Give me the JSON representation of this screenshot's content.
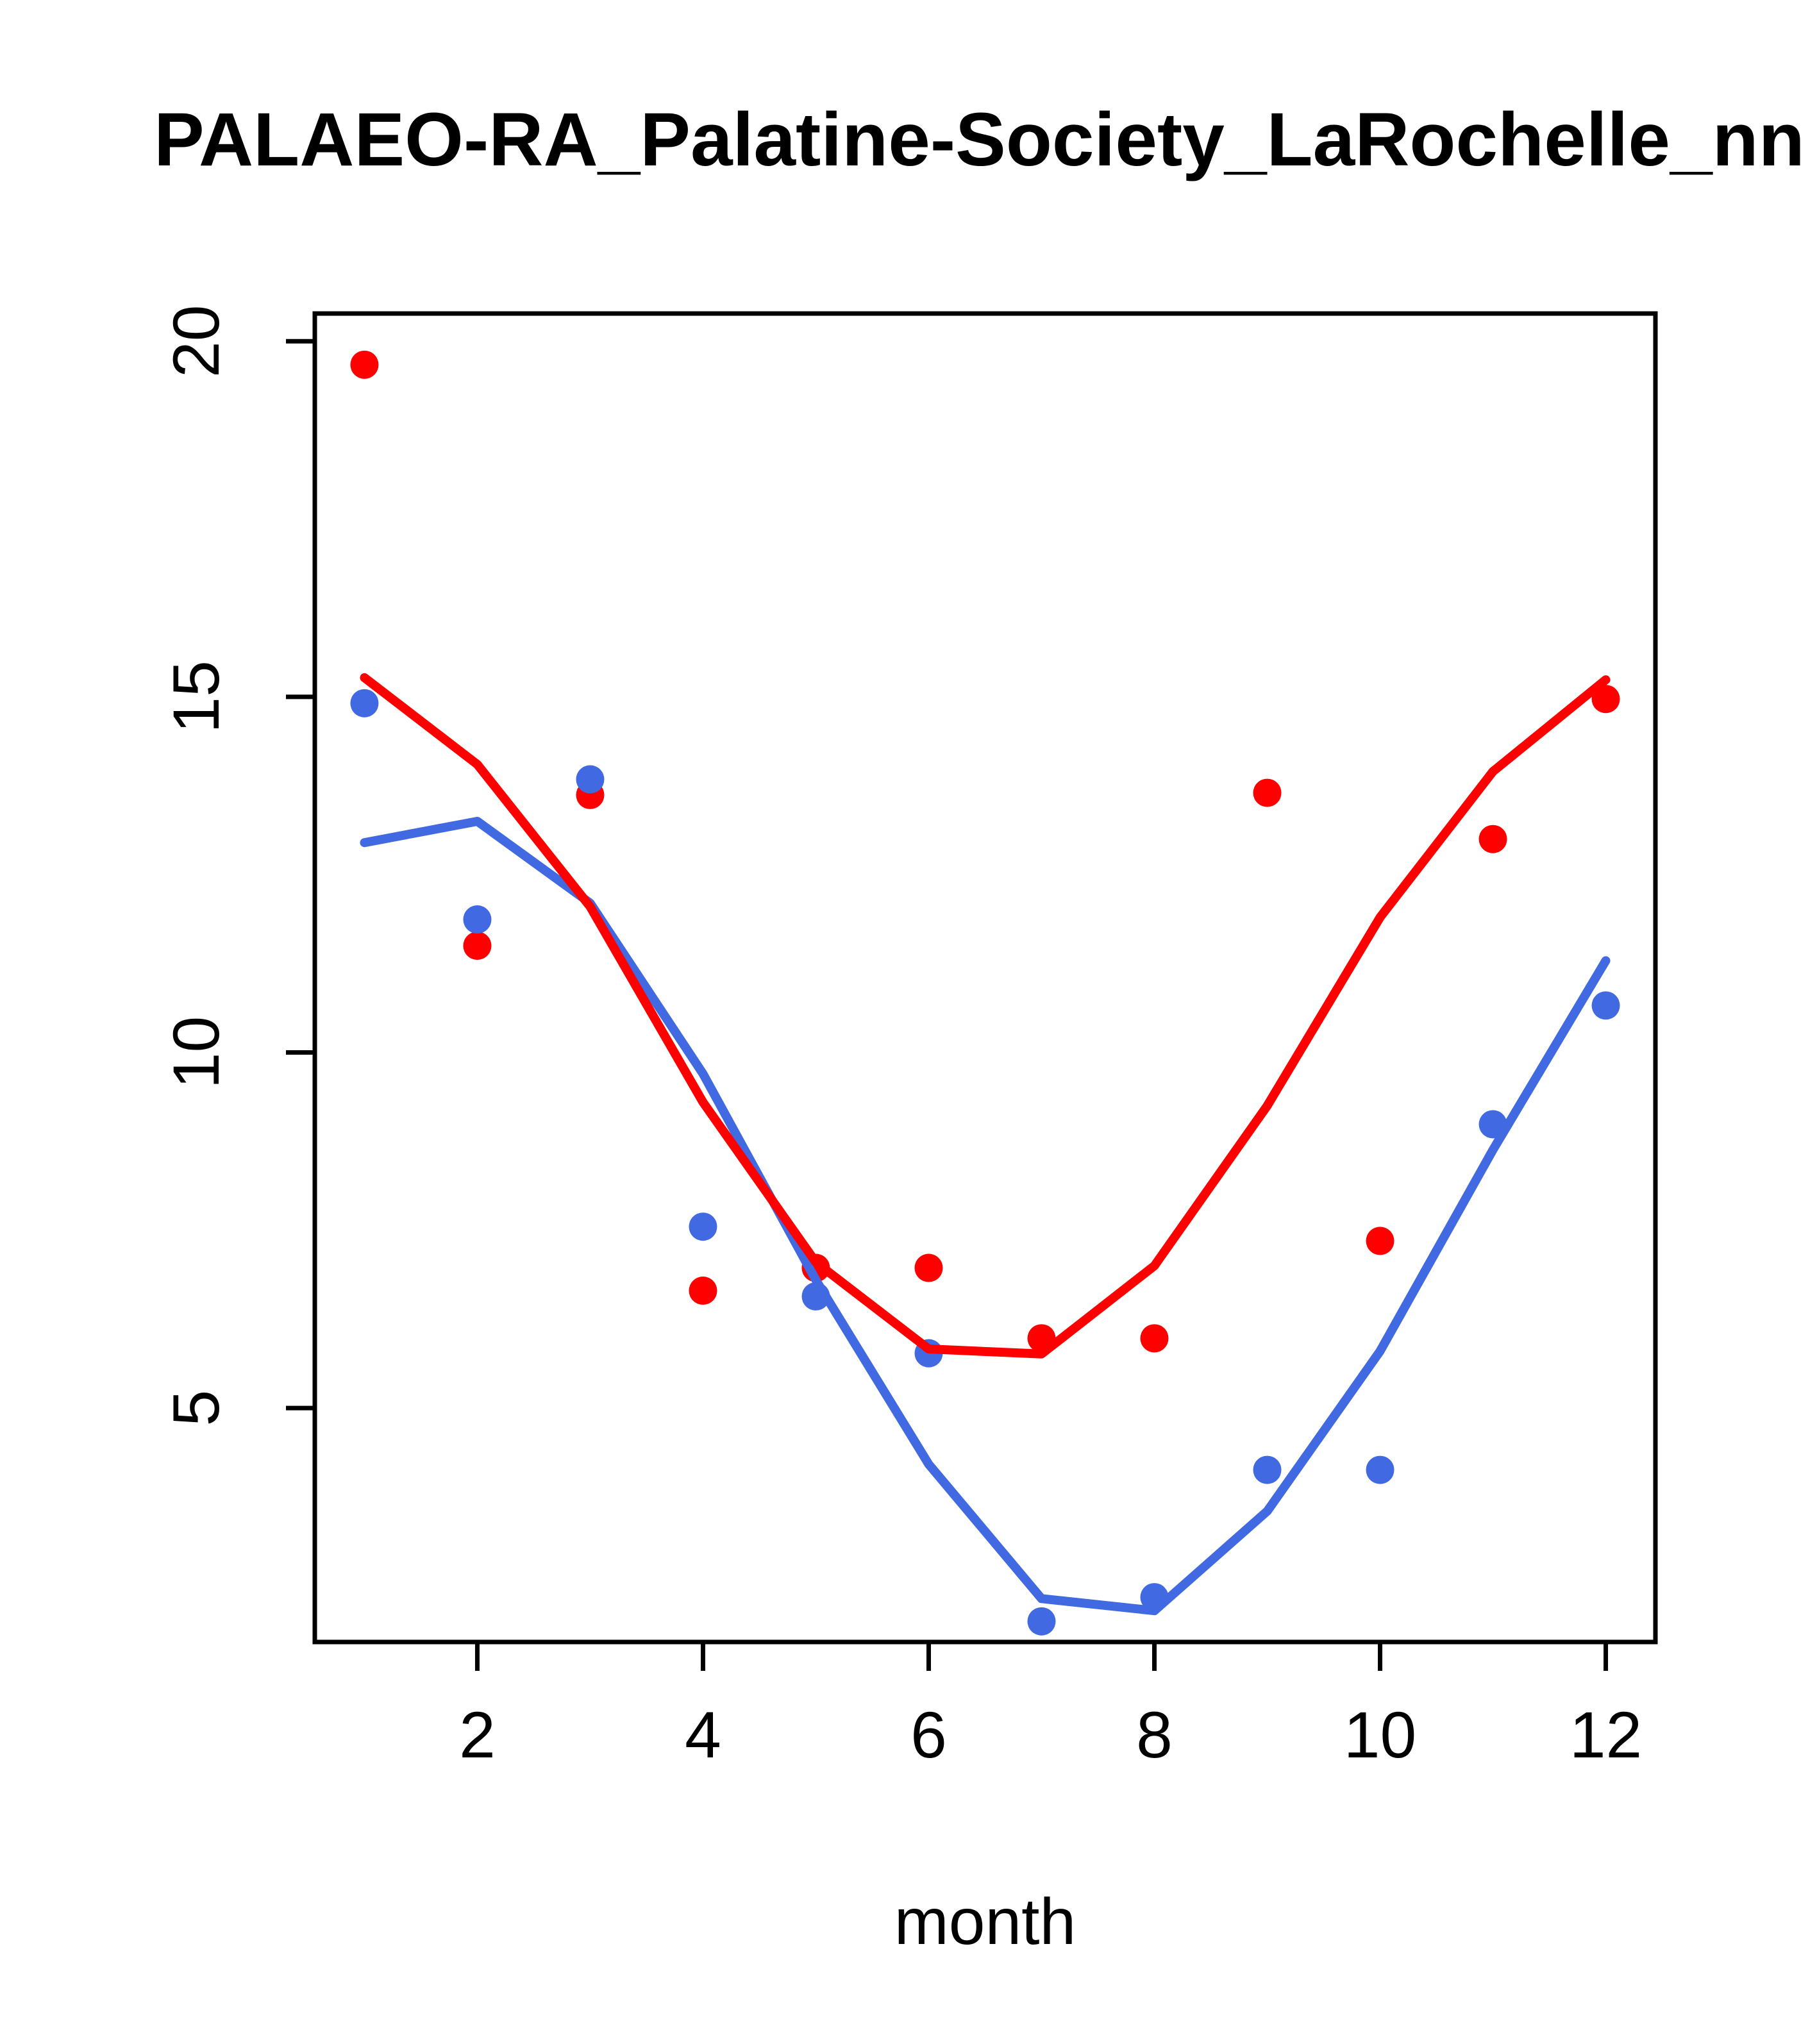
{
  "title": "PALAEO-RA_Palatine-Society_LaRochelle_nn",
  "colors": {
    "foreground": "#000000",
    "background": "#ffffff",
    "red_series": "#ff0000",
    "blue_series": "#4169e1"
  },
  "chart_data": {
    "type": "scatter",
    "title": "PALAEO-RA_Palatine-Society_LaRochelle_nn",
    "xlabel": "month",
    "ylabel": "",
    "x": [
      1,
      2,
      3,
      4,
      5,
      6,
      7,
      8,
      9,
      10,
      11,
      12
    ],
    "xlim": [
      0.56,
      12.44
    ],
    "ylim": [
      1.71,
      20.39
    ],
    "x_ticks": [
      2,
      4,
      6,
      8,
      10,
      12
    ],
    "y_ticks": [
      5,
      10,
      15,
      20
    ],
    "grid": false,
    "legend": null,
    "series": [
      {
        "name": "red-points",
        "kind": "points",
        "color": "#ff0000",
        "values": [
          19.67,
          11.5,
          13.62,
          6.65,
          6.97,
          6.97,
          5.98,
          5.98,
          13.65,
          7.35,
          13.0,
          14.97
        ]
      },
      {
        "name": "blue-points",
        "kind": "points",
        "color": "#4169e1",
        "values": [
          14.91,
          11.87,
          13.84,
          7.55,
          6.57,
          5.77,
          2.0,
          2.34,
          4.13,
          4.13,
          8.99,
          10.66
        ]
      },
      {
        "name": "blue-smooth-line",
        "kind": "line",
        "color": "#4169e1",
        "values": [
          12.95,
          13.25,
          12.1,
          9.7,
          6.8,
          4.21,
          2.32,
          2.15,
          3.55,
          5.8,
          8.63,
          11.29
        ]
      },
      {
        "name": "red-smooth-line",
        "kind": "line",
        "color": "#ff0000",
        "values": [
          15.27,
          14.05,
          12.05,
          9.3,
          7.05,
          5.83,
          5.76,
          7.0,
          9.25,
          11.9,
          13.95,
          15.24
        ]
      }
    ]
  }
}
